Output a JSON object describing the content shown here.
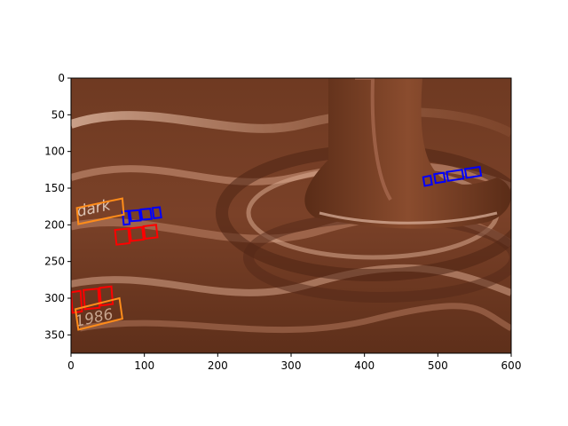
{
  "figure": {
    "x_ticks": [
      0,
      100,
      200,
      300,
      400,
      500,
      600
    ],
    "y_ticks": [
      0,
      50,
      100,
      150,
      200,
      250,
      300,
      350
    ],
    "xlim": [
      0,
      600
    ],
    "ylim": [
      375,
      0
    ],
    "box_colors": {
      "blue": "#0000ff",
      "red": "#ff0000",
      "orange": "#ff8c1a"
    },
    "image_labels": {
      "orange_top": "dark",
      "orange_bottom": "1986"
    }
  },
  "chart_data": {
    "type": "image-annotation",
    "title": "",
    "xlabel": "",
    "ylabel": "",
    "xlim": [
      0,
      600
    ],
    "ylim": [
      375,
      0
    ],
    "boxes": [
      {
        "color": "blue",
        "points": [
          [
            480,
            135
          ],
          [
            490,
            133
          ],
          [
            492,
            145
          ],
          [
            482,
            147
          ]
        ]
      },
      {
        "color": "blue",
        "points": [
          [
            495,
            131
          ],
          [
            508,
            129
          ],
          [
            510,
            141
          ],
          [
            497,
            143
          ]
        ]
      },
      {
        "color": "blue",
        "points": [
          [
            512,
            128
          ],
          [
            533,
            125
          ],
          [
            535,
            137
          ],
          [
            514,
            140
          ]
        ]
      },
      {
        "color": "blue",
        "points": [
          [
            537,
            124
          ],
          [
            557,
            121
          ],
          [
            559,
            133
          ],
          [
            539,
            136
          ]
        ]
      },
      {
        "color": "blue",
        "points": [
          [
            70,
            182
          ],
          [
            78,
            181
          ],
          [
            80,
            199
          ],
          [
            72,
            200
          ]
        ]
      },
      {
        "color": "blue",
        "points": [
          [
            80,
            181
          ],
          [
            93,
            180
          ],
          [
            95,
            194
          ],
          [
            82,
            195
          ]
        ]
      },
      {
        "color": "blue",
        "points": [
          [
            95,
            179
          ],
          [
            108,
            178
          ],
          [
            110,
            192
          ],
          [
            97,
            193
          ]
        ]
      },
      {
        "color": "blue",
        "points": [
          [
            111,
            177
          ],
          [
            121,
            176
          ],
          [
            123,
            190
          ],
          [
            113,
            191
          ]
        ]
      },
      {
        "color": "red",
        "points": [
          [
            60,
            207
          ],
          [
            78,
            205
          ],
          [
            80,
            225
          ],
          [
            62,
            227
          ]
        ]
      },
      {
        "color": "red",
        "points": [
          [
            80,
            205
          ],
          [
            97,
            203
          ],
          [
            99,
            220
          ],
          [
            82,
            222
          ]
        ]
      },
      {
        "color": "red",
        "points": [
          [
            99,
            202
          ],
          [
            116,
            200
          ],
          [
            118,
            217
          ],
          [
            101,
            219
          ]
        ]
      },
      {
        "color": "red",
        "points": [
          [
            0,
            292
          ],
          [
            13,
            290
          ],
          [
            15,
            318
          ],
          [
            2,
            320
          ]
        ]
      },
      {
        "color": "red",
        "points": [
          [
            17,
            289
          ],
          [
            37,
            287
          ],
          [
            39,
            313
          ],
          [
            19,
            315
          ]
        ]
      },
      {
        "color": "red",
        "points": [
          [
            39,
            286
          ],
          [
            55,
            284
          ],
          [
            57,
            308
          ],
          [
            41,
            310
          ]
        ]
      },
      {
        "color": "orange",
        "points": [
          [
            8,
            177
          ],
          [
            70,
            164
          ],
          [
            72,
            186
          ],
          [
            10,
            199
          ]
        ]
      },
      {
        "color": "orange",
        "points": [
          [
            6,
            315
          ],
          [
            66,
            300
          ],
          [
            70,
            328
          ],
          [
            10,
            343
          ]
        ]
      }
    ]
  }
}
